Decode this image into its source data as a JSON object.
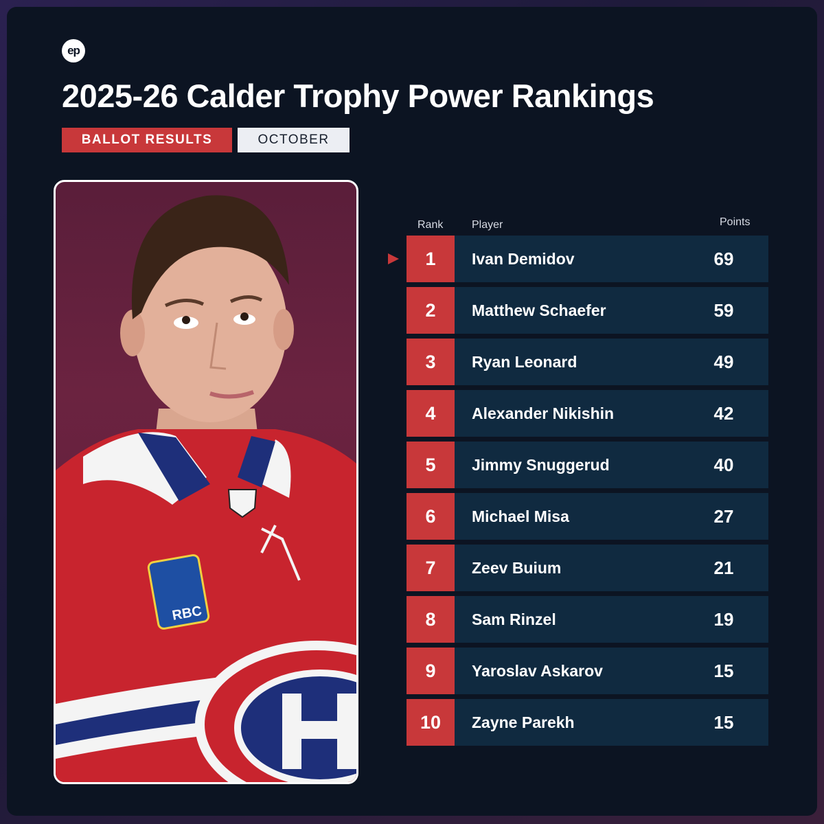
{
  "brand": {
    "logo_text": "ep"
  },
  "title": "2025-26 Calder Trophy Power Rankings",
  "tags": {
    "primary": "BALLOT RESULTS",
    "secondary": "OCTOBER"
  },
  "photo": {
    "sponsor_patch": "RBC",
    "icon": "hockey-player-photo"
  },
  "table": {
    "headers": {
      "rank": "Rank",
      "player": "Player",
      "points": "Points"
    },
    "rows": [
      {
        "rank": "1",
        "player": "Ivan Demidov",
        "points": "69"
      },
      {
        "rank": "2",
        "player": "Matthew Schaefer",
        "points": "59"
      },
      {
        "rank": "3",
        "player": "Ryan Leonard",
        "points": "49"
      },
      {
        "rank": "4",
        "player": "Alexander Nikishin",
        "points": "42"
      },
      {
        "rank": "5",
        "player": "Jimmy Snuggerud",
        "points": "40"
      },
      {
        "rank": "6",
        "player": "Michael Misa",
        "points": "27"
      },
      {
        "rank": "7",
        "player": "Zeev Buium",
        "points": "21"
      },
      {
        "rank": "8",
        "player": "Sam Rinzel",
        "points": "19"
      },
      {
        "rank": "9",
        "player": "Yaroslav Askarov",
        "points": "15"
      },
      {
        "rank": "10",
        "player": "Zayne Parekh",
        "points": "15"
      }
    ]
  },
  "colors": {
    "accent": "#c8383a",
    "row_bg": "#102a40",
    "card_bg": "#0c1422"
  }
}
